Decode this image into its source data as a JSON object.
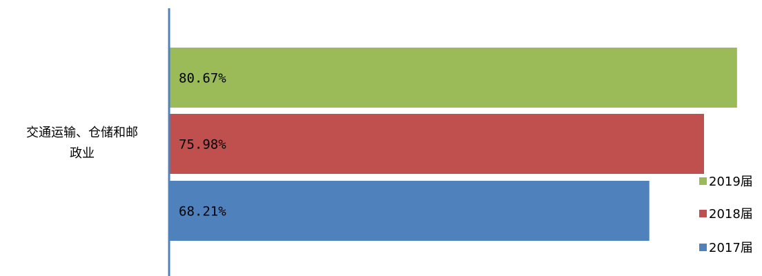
{
  "chart_data": {
    "type": "bar",
    "orientation": "horizontal",
    "categories": [
      "交通运输、仓储和邮政业"
    ],
    "series": [
      {
        "name": "2017届",
        "values": [
          68.21
        ],
        "color": "#4F81BD",
        "label": "68.21%"
      },
      {
        "name": "2018届",
        "values": [
          75.98
        ],
        "color": "#C0504D",
        "label": "75.98%"
      },
      {
        "name": "2019届",
        "values": [
          80.67
        ],
        "color": "#9BBB59",
        "label": "80.67%"
      }
    ],
    "category_label_lines": [
      "交通运输、仓储和邮",
      "政业"
    ],
    "legend": {
      "position": "right",
      "entries": [
        {
          "name": "2019届",
          "color": "#9BBB59"
        },
        {
          "name": "2018届",
          "color": "#C0504D"
        },
        {
          "name": "2017届",
          "color": "#4F81BD"
        }
      ]
    },
    "axis_color": "#4F81BD",
    "value_unit": "%",
    "grid": false
  }
}
